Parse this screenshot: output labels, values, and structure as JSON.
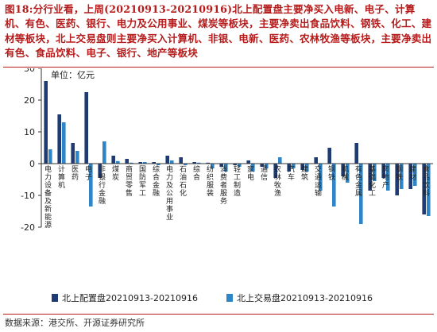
{
  "caption": {
    "fig_label": "图18:",
    "text": "分行业看，上周(20210913-20210916)北上配置盘主要净买入电新、电子、计算机、有色、医药、银行、电力及公用事业、煤炭等板块，主要净卖出食品饮料、钢铁、化工、建材等板块，北上交易盘则主要净买入计算机、非银、电新、医药、农林牧渔等板块，主要净卖出有色、食品饮料、电子、银行、地产等板块"
  },
  "source": "数据来源：港交所、开源证券研究所",
  "colors": {
    "series1": "#1f3b73",
    "series2": "#2e86c8",
    "caption": "#b71c1c"
  },
  "chart_data": {
    "type": "bar",
    "ylabel": "单位：亿元",
    "ylim": [
      -20,
      30
    ],
    "yticks": [
      -20,
      -10,
      0,
      10,
      20,
      30
    ],
    "grid": false,
    "legend_position": "bottom",
    "categories": [
      "电力设备及新能源",
      "计算机",
      "医药",
      "电子",
      "非银行金融",
      "煤炭",
      "商贸零售",
      "国防军工",
      "综合金融",
      "电力及公用事业",
      "石油石化",
      "综合",
      "纺织服装",
      "消费者服务",
      "轻工制造",
      "家电",
      "通信",
      "农林牧渔",
      "汽车",
      "建筑",
      "交通运输",
      "钢铁",
      "机械",
      "有色金属",
      "基础化工",
      "房地产",
      "钢铁",
      "建材",
      "食品饮料"
    ],
    "series": [
      {
        "name": "北上配置盘20210913-20210916",
        "values": [
          26,
          15.5,
          6.5,
          22.5,
          -4.5,
          2.5,
          1.5,
          0.5,
          0.5,
          2.5,
          2,
          0.5,
          0.3,
          -1,
          -0.5,
          1,
          -1,
          -4.5,
          -2.5,
          -2,
          2,
          5,
          -4,
          6.5,
          -8.5,
          -4.5,
          -10,
          -8,
          -16
        ]
      },
      {
        "name": "北上交易盘20210913-20210916",
        "values": [
          4.5,
          13,
          4,
          -13.5,
          7,
          0.8,
          0.3,
          0.5,
          -0.5,
          1,
          -0.5,
          0.3,
          -1.5,
          -2.5,
          -1,
          -2.5,
          -1.5,
          2,
          -1.5,
          -2.5,
          -8.5,
          -13.5,
          -6,
          -19,
          -5.5,
          -8.5,
          -8,
          -7,
          -16.5
        ]
      }
    ]
  }
}
